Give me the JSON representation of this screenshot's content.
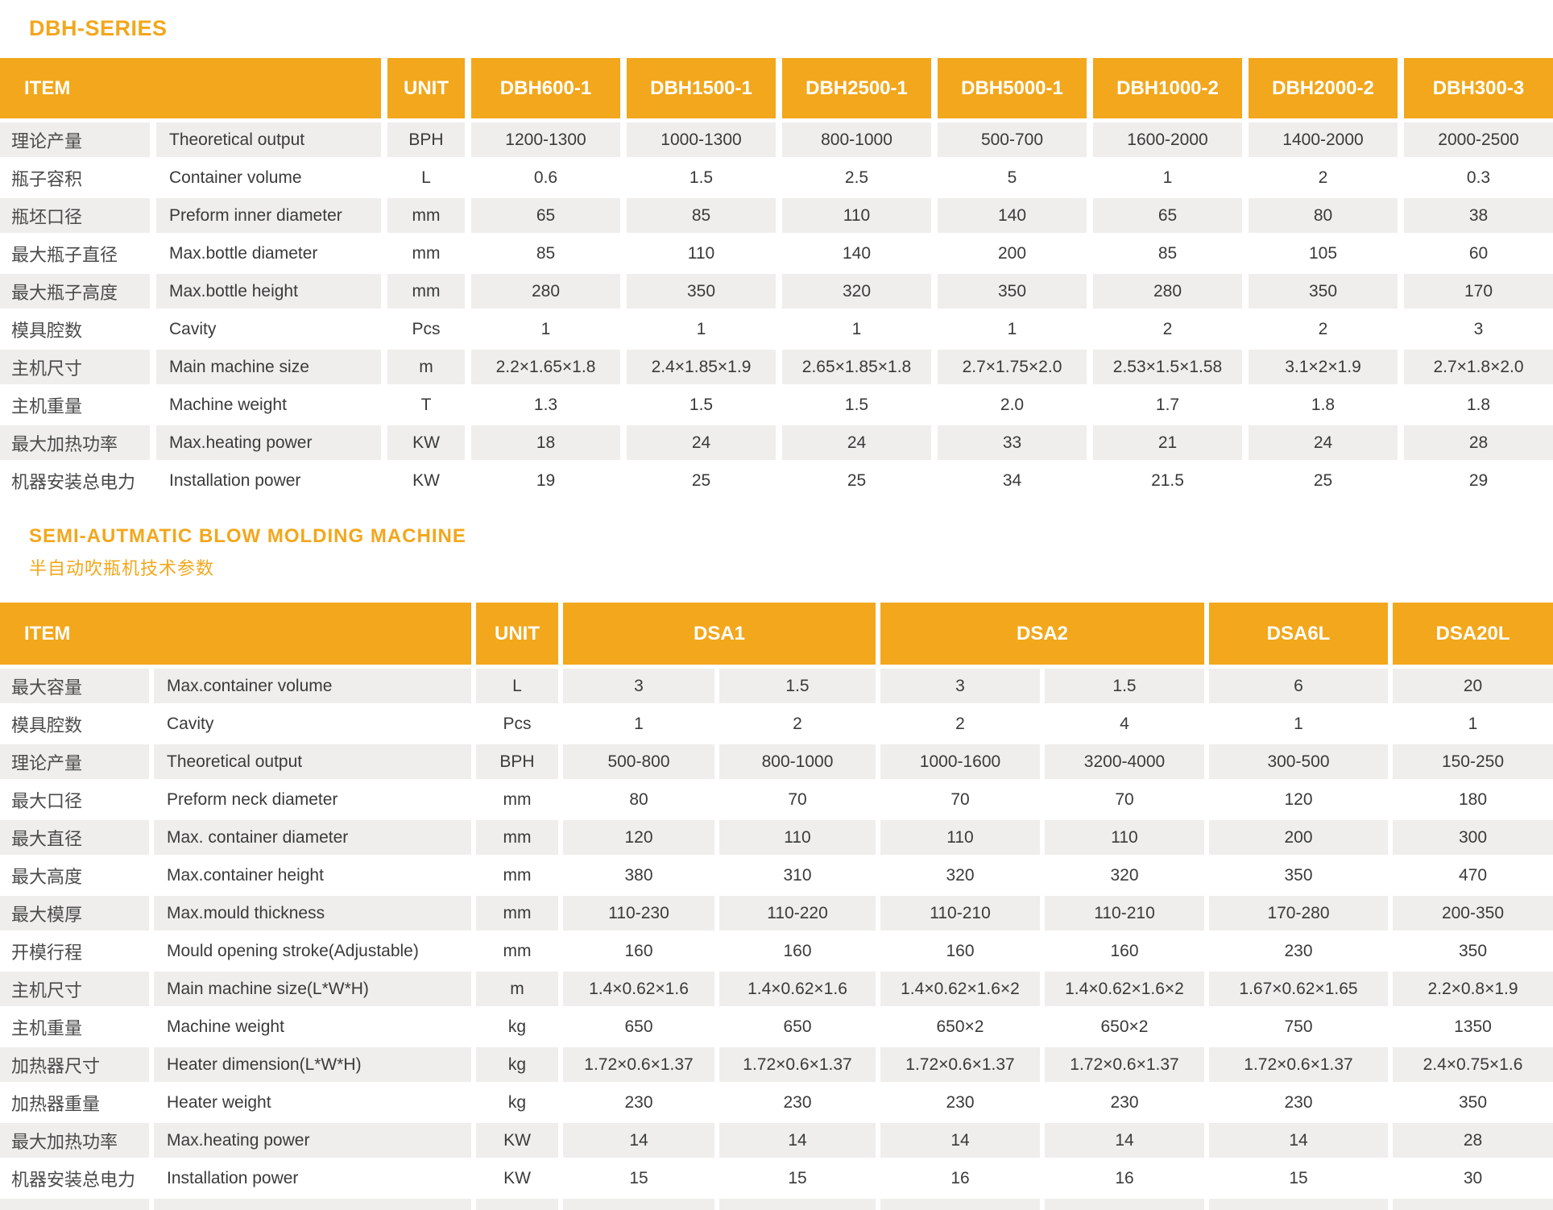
{
  "colors": {
    "accent": "#F2A71C",
    "row_grey": "#EFEEEC",
    "text": "#3A3A3A",
    "header_text": "#FFFFFF"
  },
  "section1": {
    "title": "DBH-SERIES",
    "table": {
      "item_header": "ITEM",
      "unit_header": "UNIT",
      "columns": [
        "DBH600-1",
        "DBH1500-1",
        "DBH2500-1",
        "DBH5000-1",
        "DBH1000-2",
        "DBH2000-2",
        "DBH300-3"
      ],
      "rows": [
        {
          "cn": "理论产量",
          "en": "Theoretical output",
          "unit": "BPH",
          "values": [
            "1200-1300",
            "1000-1300",
            "800-1000",
            "500-700",
            "1600-2000",
            "1400-2000",
            "2000-2500"
          ]
        },
        {
          "cn": "瓶子容积",
          "en": "Container volume",
          "unit": "L",
          "values": [
            "0.6",
            "1.5",
            "2.5",
            "5",
            "1",
            "2",
            "0.3"
          ]
        },
        {
          "cn": "瓶坯口径",
          "en": "Preform inner diameter",
          "unit": "mm",
          "values": [
            "65",
            "85",
            "110",
            "140",
            "65",
            "80",
            "38"
          ]
        },
        {
          "cn": "最大瓶子直径",
          "en": "Max.bottle diameter",
          "unit": "mm",
          "values": [
            "85",
            "110",
            "140",
            "200",
            "85",
            "105",
            "60"
          ]
        },
        {
          "cn": "最大瓶子高度",
          "en": "Max.bottle height",
          "unit": "mm",
          "values": [
            "280",
            "350",
            "320",
            "350",
            "280",
            "350",
            "170"
          ]
        },
        {
          "cn": "模具腔数",
          "en": "Cavity",
          "unit": "Pcs",
          "values": [
            "1",
            "1",
            "1",
            "1",
            "2",
            "2",
            "3"
          ]
        },
        {
          "cn": "主机尺寸",
          "en": "Main machine size",
          "unit": "m",
          "values": [
            "2.2×1.65×1.8",
            "2.4×1.85×1.9",
            "2.65×1.85×1.8",
            "2.7×1.75×2.0",
            "2.53×1.5×1.58",
            "3.1×2×1.9",
            "2.7×1.8×2.0"
          ]
        },
        {
          "cn": "主机重量",
          "en": "Machine weight",
          "unit": "T",
          "values": [
            "1.3",
            "1.5",
            "1.5",
            "2.0",
            "1.7",
            "1.8",
            "1.8"
          ]
        },
        {
          "cn": "最大加热功率",
          "en": "Max.heating power",
          "unit": "KW",
          "values": [
            "18",
            "24",
            "24",
            "33",
            "21",
            "24",
            "28"
          ]
        },
        {
          "cn": "机器安装总电力",
          "en": "Installation power",
          "unit": "KW",
          "values": [
            "19",
            "25",
            "25",
            "34",
            "21.5",
            "25",
            "29"
          ]
        }
      ]
    }
  },
  "section2": {
    "title": "SEMI-AUTMATIC BLOW MOLDING MACHINE",
    "subtitle": "半自动吹瓶机技术参数",
    "table": {
      "item_header": "ITEM",
      "unit_header": "UNIT",
      "column_groups": [
        {
          "label": "DSA1",
          "span": 2
        },
        {
          "label": "DSA2",
          "span": 2
        },
        {
          "label": "DSA6L",
          "span": 1
        },
        {
          "label": "DSA20L",
          "span": 1
        }
      ],
      "rows": [
        {
          "cn": "最大容量",
          "en": "Max.container volume",
          "unit": "L",
          "values": [
            "3",
            "1.5",
            "3",
            "1.5",
            "6",
            "20"
          ]
        },
        {
          "cn": "模具腔数",
          "en": "Cavity",
          "unit": "Pcs",
          "values": [
            "1",
            "2",
            "2",
            "4",
            "1",
            "1"
          ]
        },
        {
          "cn": "理论产量",
          "en": "Theoretical output",
          "unit": "BPH",
          "values": [
            "500-800",
            "800-1000",
            "1000-1600",
            "3200-4000",
            "300-500",
            "150-250"
          ]
        },
        {
          "cn": "最大口径",
          "en": "Preform neck diameter",
          "unit": "mm",
          "values": [
            "80",
            "70",
            "70",
            "70",
            "120",
            "180"
          ]
        },
        {
          "cn": "最大直径",
          "en": "Max. container diameter",
          "unit": "mm",
          "values": [
            "120",
            "110",
            "110",
            "110",
            "200",
            "300"
          ]
        },
        {
          "cn": "最大高度",
          "en": "Max.container height",
          "unit": "mm",
          "values": [
            "380",
            "310",
            "320",
            "320",
            "350",
            "470"
          ]
        },
        {
          "cn": "最大模厚",
          "en": "Max.mould thickness",
          "unit": "mm",
          "values": [
            "110-230",
            "110-220",
            "110-210",
            "110-210",
            "170-280",
            "200-350"
          ]
        },
        {
          "cn": "开模行程",
          "en": "Mould opening stroke(Adjustable)",
          "unit": "mm",
          "values": [
            "160",
            "160",
            "160",
            "160",
            "230",
            "350"
          ]
        },
        {
          "cn": "主机尺寸",
          "en": "Main machine size(L*W*H)",
          "unit": "m",
          "values": [
            "1.4×0.62×1.6",
            "1.4×0.62×1.6",
            "1.4×0.62×1.6×2",
            "1.4×0.62×1.6×2",
            "1.67×0.62×1.65",
            "2.2×0.8×1.9"
          ]
        },
        {
          "cn": "主机重量",
          "en": "Machine weight",
          "unit": "kg",
          "values": [
            "650",
            "650",
            "650×2",
            "650×2",
            "750",
            "1350"
          ]
        },
        {
          "cn": "加热器尺寸",
          "en": "Heater dimension(L*W*H)",
          "unit": "kg",
          "values": [
            "1.72×0.6×1.37",
            "1.72×0.6×1.37",
            "1.72×0.6×1.37",
            "1.72×0.6×1.37",
            "1.72×0.6×1.37",
            "2.4×0.75×1.6"
          ]
        },
        {
          "cn": "加热器重量",
          "en": "Heater weight",
          "unit": "kg",
          "values": [
            "230",
            "230",
            "230",
            "230",
            "230",
            "350"
          ]
        },
        {
          "cn": "最大加热功率",
          "en": "Max.heating power",
          "unit": "KW",
          "values": [
            "14",
            "14",
            "14",
            "14",
            "14",
            "28"
          ]
        },
        {
          "cn": "机器安装总电力",
          "en": "Installation power",
          "unit": "KW",
          "values": [
            "15",
            "15",
            "16",
            "16",
            "15",
            "30"
          ]
        }
      ]
    }
  }
}
